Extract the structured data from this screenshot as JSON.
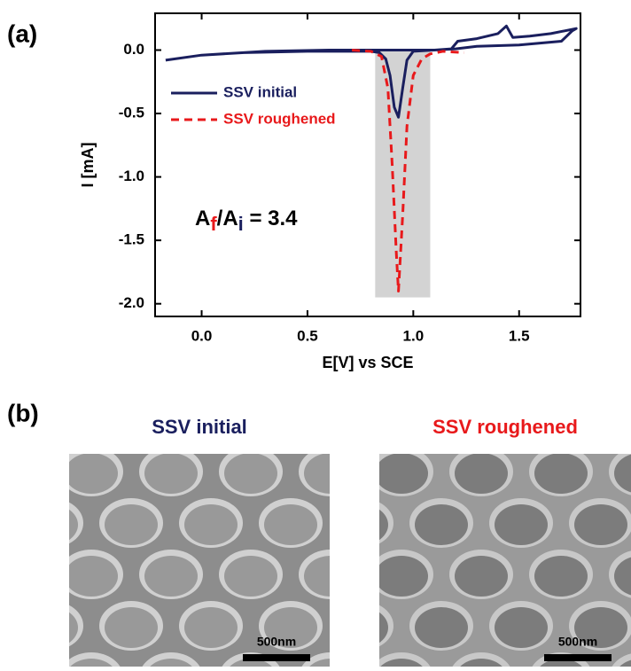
{
  "chart_data": {
    "type": "line",
    "xlabel": "E[V] vs SCE",
    "ylabel": "I [mA]",
    "xlim": [
      -0.22,
      1.79
    ],
    "ylim": [
      -2.1,
      0.29
    ],
    "xticks": [
      {
        "value": 0,
        "label": "0.0"
      },
      0.5,
      {
        "value": 1,
        "label": "1.0"
      },
      1.5
    ],
    "yticks": [
      {
        "value": 0,
        "label": "0.0"
      },
      -0.5,
      {
        "value": -1,
        "label": "-1.0"
      },
      -1.5,
      {
        "value": -2,
        "label": "-2.0"
      }
    ],
    "highlight": {
      "x": [
        0.82,
        1.08
      ],
      "y": [
        -1.95,
        0
      ],
      "color": "#d3d3d3"
    },
    "series": [
      {
        "name": "SSV initial",
        "color": "#1a1f5e",
        "dash": false,
        "x": [
          -0.17,
          0.0,
          0.3,
          0.6,
          0.9,
          1.1,
          1.18,
          1.21,
          1.3,
          1.4,
          1.44,
          1.47,
          1.55,
          1.65,
          1.77,
          1.75,
          1.7,
          1.5,
          1.3,
          1.2,
          1.0,
          0.97,
          0.95,
          0.93,
          0.91,
          0.89,
          0.87,
          0.84,
          0.8,
          0.5,
          0.2,
          0.0,
          -0.17
        ],
        "values": [
          -0.08,
          -0.04,
          -0.01,
          0.0,
          0.0,
          0.0,
          0.01,
          0.07,
          0.09,
          0.13,
          0.19,
          0.1,
          0.11,
          0.13,
          0.17,
          0.15,
          0.07,
          0.04,
          0.03,
          0.01,
          -0.01,
          -0.08,
          -0.3,
          -0.53,
          -0.45,
          -0.2,
          -0.07,
          -0.02,
          -0.01,
          -0.01,
          -0.02,
          -0.04,
          -0.08
        ]
      },
      {
        "name": "SSV roughened",
        "color": "#e8191b",
        "dash": true,
        "x": [
          0.71,
          0.8,
          0.85,
          0.88,
          0.9,
          0.92,
          0.93,
          0.95,
          0.97,
          1.0,
          1.04,
          1.08,
          1.14,
          1.24
        ],
        "values": [
          0.0,
          -0.01,
          -0.05,
          -0.3,
          -0.9,
          -1.6,
          -1.9,
          -1.3,
          -0.6,
          -0.2,
          -0.07,
          -0.03,
          -0.01,
          -0.02
        ]
      }
    ],
    "legend": "upper left",
    "annotation": {
      "parts": [
        {
          "text": "A",
          "sub": false,
          "color": "#000000"
        },
        {
          "text": "f",
          "sub": true,
          "color": "#e8191b"
        },
        {
          "text": "/A",
          "sub": false,
          "color": "#000000"
        },
        {
          "text": "i",
          "sub": true,
          "color": "#1a1f5e"
        },
        {
          "text": " = 3.4",
          "sub": false,
          "color": "#000000"
        }
      ]
    }
  },
  "figure": {
    "panel_a": "(a)",
    "panel_b": "(b)",
    "images": [
      {
        "title": "SSV initial",
        "color": "#1a1f5e",
        "scale_bar": "500nm"
      },
      {
        "title": "SSV roughened",
        "color": "#e8191b",
        "scale_bar": "500nm"
      }
    ]
  }
}
